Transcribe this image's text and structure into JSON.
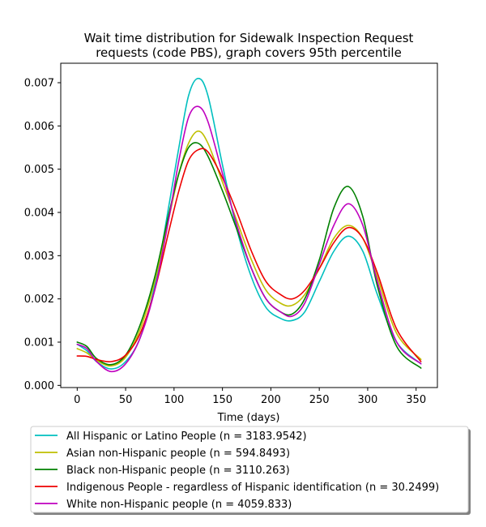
{
  "chart_data": {
    "type": "line",
    "title_lines": [
      "Wait time distribution  for Sidewalk Inspection Request",
      "requests (code PBS), graph covers 95th percentile"
    ],
    "xlabel": "Time (days)",
    "ylabel": "",
    "xlim": [
      -17,
      372
    ],
    "ylim": [
      -5e-05,
      0.00745
    ],
    "x_ticks": [
      0,
      50,
      100,
      150,
      200,
      250,
      300,
      350
    ],
    "x_tick_labels": [
      "0",
      "50",
      "100",
      "150",
      "200",
      "250",
      "300",
      "350"
    ],
    "y_ticks": [
      0.0,
      0.001,
      0.002,
      0.003,
      0.004,
      0.005,
      0.006,
      0.007
    ],
    "y_tick_labels": [
      "0.000",
      "0.001",
      "0.002",
      "0.003",
      "0.004",
      "0.005",
      "0.006",
      "0.007"
    ],
    "grid": false,
    "legend_position": "below",
    "series": [
      {
        "name": "All Hispanic or Latino People (n = 3183.9542)",
        "color": "#00bfbf",
        "x": [
          0,
          10,
          20,
          35,
          50,
          65,
          80,
          95,
          105,
          115,
          125,
          135,
          150,
          165,
          180,
          195,
          210,
          222,
          235,
          250,
          265,
          280,
          295,
          310,
          330,
          355
        ],
        "y": [
          0.00095,
          0.0008,
          0.00055,
          0.00038,
          0.00055,
          0.0011,
          0.0023,
          0.0042,
          0.0055,
          0.0067,
          0.0071,
          0.0067,
          0.0051,
          0.0036,
          0.0025,
          0.0018,
          0.00155,
          0.0015,
          0.0017,
          0.0024,
          0.0031,
          0.00345,
          0.0031,
          0.0021,
          0.001,
          0.0005
        ]
      },
      {
        "name": "Asian non-Hispanic people (n = 594.8493)",
        "color": "#bfbf00",
        "x": [
          0,
          10,
          20,
          35,
          50,
          65,
          80,
          95,
          105,
          115,
          125,
          135,
          150,
          165,
          180,
          195,
          210,
          222,
          235,
          250,
          265,
          280,
          295,
          310,
          330,
          355
        ],
        "y": [
          0.00085,
          0.00075,
          0.00058,
          0.00045,
          0.00065,
          0.0013,
          0.0024,
          0.0039,
          0.0049,
          0.0056,
          0.00588,
          0.0056,
          0.0047,
          0.0038,
          0.0029,
          0.0022,
          0.0019,
          0.00185,
          0.0021,
          0.0027,
          0.0034,
          0.0037,
          0.0034,
          0.0025,
          0.0012,
          0.0006
        ]
      },
      {
        "name": "Black non-Hispanic people (n = 3110.263)",
        "color": "#008000",
        "x": [
          0,
          10,
          20,
          35,
          50,
          65,
          80,
          95,
          105,
          115,
          125,
          135,
          150,
          165,
          180,
          195,
          210,
          222,
          235,
          250,
          265,
          280,
          295,
          310,
          330,
          355
        ],
        "y": [
          0.001,
          0.0009,
          0.00062,
          0.00048,
          0.0007,
          0.0014,
          0.0025,
          0.004,
          0.0049,
          0.0055,
          0.0056,
          0.0053,
          0.0045,
          0.0036,
          0.0027,
          0.002,
          0.0017,
          0.00165,
          0.002,
          0.0029,
          0.0041,
          0.0046,
          0.0039,
          0.0023,
          0.0009,
          0.0004
        ]
      },
      {
        "name": "Indigenous People - regardless of Hispanic identification (n = 30.2499)",
        "color": "#ee0000",
        "x": [
          0,
          10,
          20,
          35,
          50,
          65,
          80,
          95,
          105,
          115,
          125,
          135,
          150,
          165,
          180,
          195,
          210,
          222,
          235,
          250,
          265,
          280,
          295,
          310,
          330,
          355
        ],
        "y": [
          0.00068,
          0.00067,
          0.0006,
          0.00055,
          0.0007,
          0.0012,
          0.0022,
          0.0036,
          0.0045,
          0.0052,
          0.00545,
          0.0054,
          0.0048,
          0.004,
          0.0031,
          0.0024,
          0.0021,
          0.002,
          0.0022,
          0.0027,
          0.0033,
          0.00365,
          0.0034,
          0.0026,
          0.0013,
          0.00055
        ]
      },
      {
        "name": "White non-Hispanic people (n = 4059.833)",
        "color": "#bf00bf",
        "x": [
          0,
          10,
          20,
          35,
          50,
          65,
          80,
          95,
          105,
          115,
          125,
          135,
          150,
          165,
          180,
          195,
          210,
          222,
          235,
          250,
          265,
          280,
          295,
          310,
          330,
          355
        ],
        "y": [
          0.00095,
          0.00085,
          0.00055,
          0.00032,
          0.0005,
          0.0011,
          0.0022,
          0.0039,
          0.0052,
          0.0062,
          0.00645,
          0.0061,
          0.0049,
          0.0037,
          0.0027,
          0.002,
          0.0017,
          0.0016,
          0.0019,
          0.0028,
          0.0037,
          0.0042,
          0.0037,
          0.0024,
          0.001,
          0.0005
        ]
      }
    ]
  }
}
